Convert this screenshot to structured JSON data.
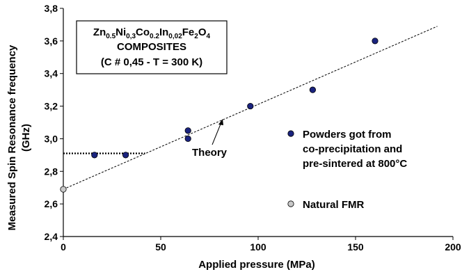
{
  "chart_data": {
    "type": "scatter",
    "xlabel": "Applied pressure (MPa)",
    "ylabel_line1": "Measured Spin Resonance frequency",
    "ylabel_line2": "(GHz)",
    "xlim": [
      0,
      200
    ],
    "ylim": [
      2.4,
      3.8
    ],
    "x_ticks": [
      "0",
      "50",
      "100",
      "150",
      "200"
    ],
    "y_ticks": [
      "2,4",
      "2,6",
      "2,8",
      "3,0",
      "3,2",
      "3,4",
      "3,6",
      "3,8"
    ],
    "grid": false,
    "legend_position": "right",
    "series": [
      {
        "name": "Powders got from co-precipitation and pre-sintered at 800°C",
        "legend_lines": [
          "Powders got from",
          "co-precipitation and",
          "pre-sintered at 800°C"
        ],
        "color": "#1a237e",
        "points": [
          [
            16,
            2.9
          ],
          [
            32,
            2.9
          ],
          [
            64,
            3.05
          ],
          [
            64,
            3.0
          ],
          [
            96,
            3.2
          ],
          [
            128,
            3.3
          ],
          [
            160,
            3.6
          ]
        ]
      },
      {
        "name": "Natural FMR",
        "legend_lines": [
          "Natural FMR"
        ],
        "color": "#c8c8c8",
        "points": [
          [
            0,
            2.69
          ]
        ]
      }
    ],
    "theory_line": {
      "label": "Theory",
      "x": [
        0,
        192
      ],
      "y": [
        2.69,
        3.69
      ]
    },
    "horizontal_dotted": {
      "y": 2.91,
      "x": [
        0,
        42
      ]
    },
    "composition_box": {
      "formula": [
        [
          "Zn",
          false
        ],
        [
          "0.5",
          true
        ],
        [
          "Ni",
          false
        ],
        [
          "0,3",
          true
        ],
        [
          "Co",
          false
        ],
        [
          "0.2",
          true
        ],
        [
          "In",
          false
        ],
        [
          "0,02",
          true
        ],
        [
          "Fe",
          false
        ],
        [
          "2",
          true
        ],
        [
          "O",
          false
        ],
        [
          "4",
          true
        ]
      ],
      "line2": "COMPOSITES",
      "line3": "(C # 0,45 - T = 300 K)"
    }
  }
}
